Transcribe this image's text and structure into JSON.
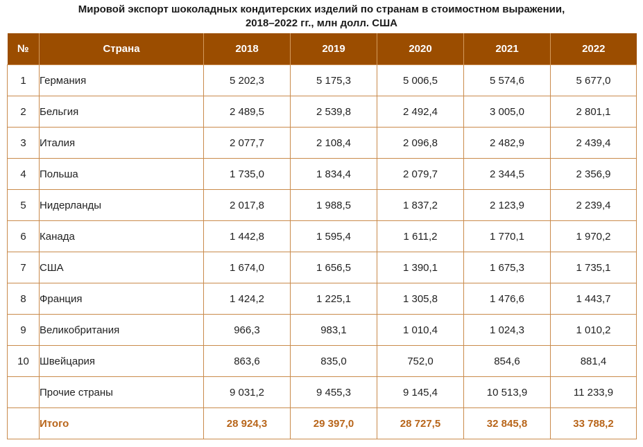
{
  "title": {
    "line1": "Мировой экспорт шоколадных кондитерских изделий по странам в стоимостном выражении,",
    "line2": "2018–2022 гг., млн долл. США"
  },
  "colors": {
    "header_bg": "#9b4d00",
    "header_text": "#ffffff",
    "border": "#c98a4b",
    "total_text": "#b8651a"
  },
  "table": {
    "headers": [
      "№",
      "Страна",
      "2018",
      "2019",
      "2020",
      "2021",
      "2022"
    ],
    "rows": [
      {
        "num": "1",
        "country": "Германия",
        "v2018": "5 202,3",
        "v2019": "5 175,3",
        "v2020": "5 006,5",
        "v2021": "5 574,6",
        "v2022": "5 677,0"
      },
      {
        "num": "2",
        "country": "Бельгия",
        "v2018": "2 489,5",
        "v2019": "2 539,8",
        "v2020": "2 492,4",
        "v2021": "3 005,0",
        "v2022": "2 801,1"
      },
      {
        "num": "3",
        "country": "Италия",
        "v2018": "2 077,7",
        "v2019": "2 108,4",
        "v2020": "2 096,8",
        "v2021": "2 482,9",
        "v2022": "2 439,4"
      },
      {
        "num": "4",
        "country": "Польша",
        "v2018": "1 735,0",
        "v2019": "1 834,4",
        "v2020": "2 079,7",
        "v2021": "2 344,5",
        "v2022": "2 356,9"
      },
      {
        "num": "5",
        "country": "Нидерланды",
        "v2018": "2 017,8",
        "v2019": "1 988,5",
        "v2020": "1 837,2",
        "v2021": "2 123,9",
        "v2022": "2 239,4"
      },
      {
        "num": "6",
        "country": "Канада",
        "v2018": "1 442,8",
        "v2019": "1 595,4",
        "v2020": "1 611,2",
        "v2021": "1 770,1",
        "v2022": "1 970,2"
      },
      {
        "num": "7",
        "country": "США",
        "v2018": "1 674,0",
        "v2019": "1 656,5",
        "v2020": "1 390,1",
        "v2021": "1 675,3",
        "v2022": "1 735,1"
      },
      {
        "num": "8",
        "country": "Франция",
        "v2018": "1 424,2",
        "v2019": "1 225,1",
        "v2020": "1 305,8",
        "v2021": "1 476,6",
        "v2022": "1 443,7"
      },
      {
        "num": "9",
        "country": "Великобритания",
        "v2018": "966,3",
        "v2019": "983,1",
        "v2020": "1 010,4",
        "v2021": "1 024,3",
        "v2022": "1 010,2"
      },
      {
        "num": "10",
        "country": "Швейцария",
        "v2018": "863,6",
        "v2019": "835,0",
        "v2020": "752,0",
        "v2021": "854,6",
        "v2022": "881,4"
      },
      {
        "num": "",
        "country": "Прочие страны",
        "v2018": "9 031,2",
        "v2019": "9 455,3",
        "v2020": "9 145,4",
        "v2021": "10 513,9",
        "v2022": "11 233,9"
      }
    ],
    "total": {
      "label": "Итого",
      "v2018": "28 924,3",
      "v2019": "29 397,0",
      "v2020": "28 727,5",
      "v2021": "32 845,8",
      "v2022": "33 788,2"
    }
  }
}
